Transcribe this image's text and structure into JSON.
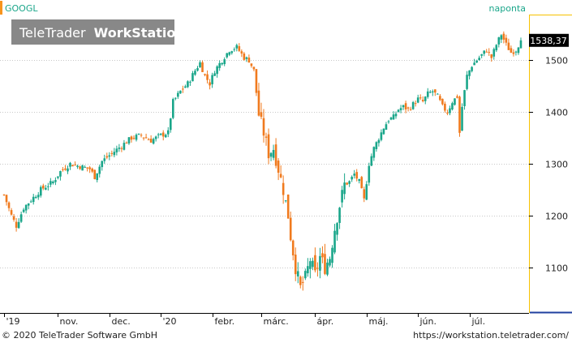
{
  "header": {
    "symbol": "GOOGL",
    "interval": "naponta",
    "watermark_part1": "TeleTrader",
    "watermark_part2": "WorkStation"
  },
  "footer": {
    "copyright": "© 2020 TeleTrader Software GmbH",
    "url": "https://workstation.teletrader.com/"
  },
  "colors": {
    "up": "#1aa68a",
    "down": "#f07a1e",
    "accent": "#f7941d",
    "grid": "#c8c8c8",
    "price_label_bg": "#000000",
    "price_label_fg": "#ffffff",
    "watermark_bg": "#888888"
  },
  "chart_data": {
    "type": "candlestick",
    "ylim": [
      1015,
      1585
    ],
    "yticks": [
      1100,
      1200,
      1300,
      1400,
      1500
    ],
    "xticks": [
      "'19",
      "nov.",
      "dec.",
      "'20",
      "febr.",
      "márc.",
      "ápr.",
      "máj.",
      "jún.",
      "júl."
    ],
    "xtick_days": [
      0,
      22,
      43,
      64,
      85,
      105,
      127,
      148,
      169,
      190
    ],
    "x_range_days": [
      0,
      212
    ],
    "last_price": 1538.37,
    "last_price_label": "1538,37",
    "close_anchors": [
      [
        0,
        1240
      ],
      [
        3,
        1200
      ],
      [
        5,
        1180
      ],
      [
        8,
        1215
      ],
      [
        12,
        1235
      ],
      [
        15,
        1250
      ],
      [
        20,
        1265
      ],
      [
        23,
        1285
      ],
      [
        27,
        1300
      ],
      [
        31,
        1295
      ],
      [
        35,
        1290
      ],
      [
        37,
        1275
      ],
      [
        40,
        1305
      ],
      [
        44,
        1320
      ],
      [
        48,
        1335
      ],
      [
        52,
        1350
      ],
      [
        56,
        1355
      ],
      [
        60,
        1345
      ],
      [
        64,
        1355
      ],
      [
        67,
        1360
      ],
      [
        69,
        1420
      ],
      [
        72,
        1440
      ],
      [
        75,
        1455
      ],
      [
        78,
        1480
      ],
      [
        80,
        1495
      ],
      [
        82,
        1470
      ],
      [
        84,
        1455
      ],
      [
        86,
        1480
      ],
      [
        89,
        1500
      ],
      [
        92,
        1520
      ],
      [
        95,
        1525
      ],
      [
        98,
        1505
      ],
      [
        100,
        1500
      ],
      [
        102,
        1480
      ],
      [
        104,
        1395
      ],
      [
        106,
        1360
      ],
      [
        108,
        1320
      ],
      [
        110,
        1330
      ],
      [
        112,
        1290
      ],
      [
        114,
        1250
      ],
      [
        116,
        1200
      ],
      [
        117,
        1160
      ],
      [
        119,
        1100
      ],
      [
        121,
        1060
      ],
      [
        123,
        1080
      ],
      [
        125,
        1115
      ],
      [
        127,
        1085
      ],
      [
        129,
        1120
      ],
      [
        131,
        1100
      ],
      [
        133,
        1120
      ],
      [
        135,
        1175
      ],
      [
        137,
        1220
      ],
      [
        139,
        1260
      ],
      [
        141,
        1265
      ],
      [
        143,
        1280
      ],
      [
        145,
        1265
      ],
      [
        147,
        1230
      ],
      [
        149,
        1300
      ],
      [
        151,
        1330
      ],
      [
        153,
        1350
      ],
      [
        155,
        1370
      ],
      [
        157,
        1385
      ],
      [
        159,
        1390
      ],
      [
        161,
        1405
      ],
      [
        163,
        1410
      ],
      [
        165,
        1405
      ],
      [
        167,
        1415
      ],
      [
        169,
        1425
      ],
      [
        171,
        1420
      ],
      [
        173,
        1435
      ],
      [
        175,
        1440
      ],
      [
        177,
        1430
      ],
      [
        179,
        1410
      ],
      [
        181,
        1400
      ],
      [
        183,
        1420
      ],
      [
        185,
        1430
      ],
      [
        186,
        1360
      ],
      [
        187,
        1410
      ],
      [
        189,
        1470
      ],
      [
        191,
        1490
      ],
      [
        193,
        1500
      ],
      [
        195,
        1510
      ],
      [
        197,
        1520
      ],
      [
        199,
        1505
      ],
      [
        201,
        1530
      ],
      [
        203,
        1550
      ],
      [
        205,
        1530
      ],
      [
        207,
        1515
      ],
      [
        209,
        1520
      ],
      [
        211,
        1538.37
      ]
    ]
  }
}
